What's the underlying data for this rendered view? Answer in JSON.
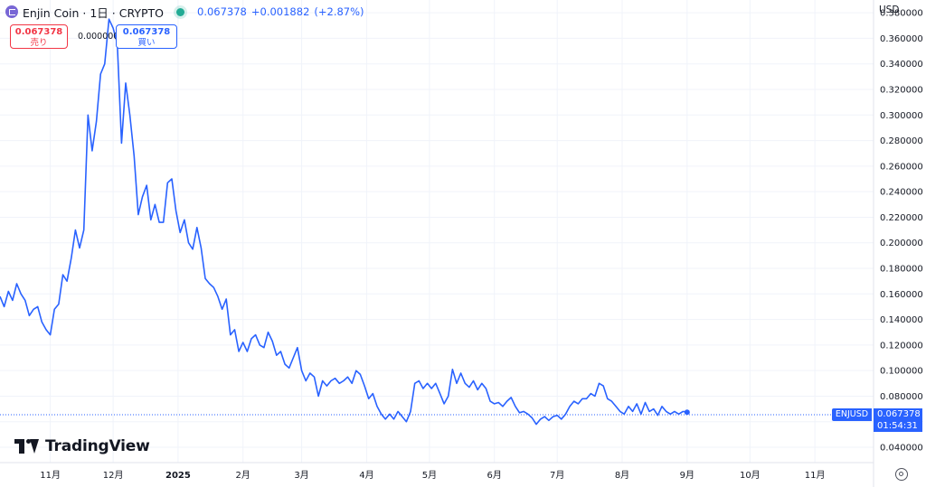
{
  "header": {
    "title": "Enjin Coin · 1日 · CRYPTO",
    "last_price": "0.067378",
    "change": "+0.001882",
    "change_pct": "(+2.87%)"
  },
  "trade_boxes": {
    "sell_price": "0.067378",
    "sell_label": "売り",
    "spread": "0.000000",
    "buy_price": "0.067378",
    "buy_label": "買い"
  },
  "currency": "USD",
  "price_tag": {
    "symbol": "ENJUSD",
    "price": "0.067378",
    "countdown": "01:54:31"
  },
  "brand": "TradingView",
  "colors": {
    "line": "#2962ff",
    "sell": "#f23645",
    "buy": "#2962ff",
    "live": "#22ab94",
    "grid": "#f0f3fa"
  },
  "icons": [
    "coin-logo-icon",
    "live-dot-icon",
    "tradingview-logo-icon",
    "settings-icon"
  ],
  "chart_data": {
    "type": "line",
    "title": "",
    "xlabel": "",
    "ylabel": "",
    "ylim": [
      0.028,
      0.39
    ],
    "xlim": [
      "2024-10-08",
      "2025-11-29"
    ],
    "y_ticks": [
      0.04,
      0.06,
      0.08,
      0.1,
      0.12,
      0.14,
      0.16,
      0.18,
      0.2,
      0.22,
      0.24,
      0.26,
      0.28,
      0.3,
      0.32,
      0.34,
      0.36,
      0.38
    ],
    "x_ticks": [
      {
        "label": "11月",
        "date": "2024-11-01"
      },
      {
        "label": "12月",
        "date": "2024-12-01"
      },
      {
        "label": "2025",
        "date": "2025-01-01"
      },
      {
        "label": "2月",
        "date": "2025-02-01"
      },
      {
        "label": "3月",
        "date": "2025-03-01"
      },
      {
        "label": "4月",
        "date": "2025-04-01"
      },
      {
        "label": "5月",
        "date": "2025-05-01"
      },
      {
        "label": "6月",
        "date": "2025-06-01"
      },
      {
        "label": "7月",
        "date": "2025-07-01"
      },
      {
        "label": "8月",
        "date": "2025-08-01"
      },
      {
        "label": "9月",
        "date": "2025-09-01"
      },
      {
        "label": "10月",
        "date": "2025-10-01"
      },
      {
        "label": "11月",
        "date": "2025-11-01"
      }
    ],
    "grid": true,
    "current_price": 0.067378,
    "series": [
      {
        "points": [
          [
            "2024-10-08",
            0.158
          ],
          [
            "2024-10-10",
            0.15
          ],
          [
            "2024-10-12",
            0.162
          ],
          [
            "2024-10-14",
            0.155
          ],
          [
            "2024-10-16",
            0.168
          ],
          [
            "2024-10-18",
            0.16
          ],
          [
            "2024-10-20",
            0.155
          ],
          [
            "2024-10-22",
            0.143
          ],
          [
            "2024-10-24",
            0.148
          ],
          [
            "2024-10-26",
            0.15
          ],
          [
            "2024-10-28",
            0.138
          ],
          [
            "2024-10-30",
            0.132
          ],
          [
            "2024-11-01",
            0.128
          ],
          [
            "2024-11-03",
            0.148
          ],
          [
            "2024-11-05",
            0.152
          ],
          [
            "2024-11-07",
            0.175
          ],
          [
            "2024-11-09",
            0.17
          ],
          [
            "2024-11-11",
            0.188
          ],
          [
            "2024-11-13",
            0.21
          ],
          [
            "2024-11-15",
            0.196
          ],
          [
            "2024-11-17",
            0.21
          ],
          [
            "2024-11-19",
            0.3
          ],
          [
            "2024-11-21",
            0.272
          ],
          [
            "2024-11-23",
            0.295
          ],
          [
            "2024-11-25",
            0.332
          ],
          [
            "2024-11-27",
            0.34
          ],
          [
            "2024-11-29",
            0.375
          ],
          [
            "2024-12-01",
            0.368
          ],
          [
            "2024-12-03",
            0.356
          ],
          [
            "2024-12-05",
            0.278
          ],
          [
            "2024-12-07",
            0.325
          ],
          [
            "2024-12-09",
            0.3
          ],
          [
            "2024-12-11",
            0.268
          ],
          [
            "2024-12-13",
            0.222
          ],
          [
            "2024-12-15",
            0.236
          ],
          [
            "2024-12-17",
            0.245
          ],
          [
            "2024-12-19",
            0.218
          ],
          [
            "2024-12-21",
            0.23
          ],
          [
            "2024-12-23",
            0.216
          ],
          [
            "2024-12-25",
            0.216
          ],
          [
            "2024-12-27",
            0.247
          ],
          [
            "2024-12-29",
            0.25
          ],
          [
            "2024-12-31",
            0.225
          ],
          [
            "2025-01-02",
            0.208
          ],
          [
            "2025-01-04",
            0.218
          ],
          [
            "2025-01-06",
            0.2
          ],
          [
            "2025-01-08",
            0.195
          ],
          [
            "2025-01-10",
            0.212
          ],
          [
            "2025-01-12",
            0.196
          ],
          [
            "2025-01-14",
            0.172
          ],
          [
            "2025-01-16",
            0.168
          ],
          [
            "2025-01-18",
            0.165
          ],
          [
            "2025-01-20",
            0.158
          ],
          [
            "2025-01-22",
            0.148
          ],
          [
            "2025-01-24",
            0.156
          ],
          [
            "2025-01-26",
            0.128
          ],
          [
            "2025-01-28",
            0.132
          ],
          [
            "2025-01-30",
            0.115
          ],
          [
            "2025-02-01",
            0.122
          ],
          [
            "2025-02-03",
            0.115
          ],
          [
            "2025-02-05",
            0.125
          ],
          [
            "2025-02-07",
            0.128
          ],
          [
            "2025-02-09",
            0.12
          ],
          [
            "2025-02-11",
            0.118
          ],
          [
            "2025-02-13",
            0.13
          ],
          [
            "2025-02-15",
            0.123
          ],
          [
            "2025-02-17",
            0.112
          ],
          [
            "2025-02-19",
            0.115
          ],
          [
            "2025-02-21",
            0.105
          ],
          [
            "2025-02-23",
            0.102
          ],
          [
            "2025-02-25",
            0.11
          ],
          [
            "2025-02-27",
            0.118
          ],
          [
            "2025-03-01",
            0.1
          ],
          [
            "2025-03-03",
            0.092
          ],
          [
            "2025-03-05",
            0.098
          ],
          [
            "2025-03-07",
            0.095
          ],
          [
            "2025-03-09",
            0.08
          ],
          [
            "2025-03-11",
            0.092
          ],
          [
            "2025-03-13",
            0.088
          ],
          [
            "2025-03-15",
            0.092
          ],
          [
            "2025-03-17",
            0.094
          ],
          [
            "2025-03-19",
            0.09
          ],
          [
            "2025-03-21",
            0.092
          ],
          [
            "2025-03-23",
            0.095
          ],
          [
            "2025-03-25",
            0.09
          ],
          [
            "2025-03-27",
            0.1
          ],
          [
            "2025-03-29",
            0.097
          ],
          [
            "2025-03-31",
            0.088
          ],
          [
            "2025-04-02",
            0.078
          ],
          [
            "2025-04-04",
            0.082
          ],
          [
            "2025-04-06",
            0.072
          ],
          [
            "2025-04-08",
            0.066
          ],
          [
            "2025-04-10",
            0.062
          ],
          [
            "2025-04-12",
            0.066
          ],
          [
            "2025-04-14",
            0.062
          ],
          [
            "2025-04-16",
            0.068
          ],
          [
            "2025-04-18",
            0.064
          ],
          [
            "2025-04-20",
            0.06
          ],
          [
            "2025-04-22",
            0.068
          ],
          [
            "2025-04-24",
            0.09
          ],
          [
            "2025-04-26",
            0.092
          ],
          [
            "2025-04-28",
            0.086
          ],
          [
            "2025-04-30",
            0.09
          ],
          [
            "2025-05-02",
            0.086
          ],
          [
            "2025-05-04",
            0.09
          ],
          [
            "2025-05-06",
            0.082
          ],
          [
            "2025-05-08",
            0.074
          ],
          [
            "2025-05-10",
            0.08
          ],
          [
            "2025-05-12",
            0.101
          ],
          [
            "2025-05-14",
            0.09
          ],
          [
            "2025-05-16",
            0.098
          ],
          [
            "2025-05-18",
            0.09
          ],
          [
            "2025-05-20",
            0.087
          ],
          [
            "2025-05-22",
            0.092
          ],
          [
            "2025-05-24",
            0.085
          ],
          [
            "2025-05-26",
            0.09
          ],
          [
            "2025-05-28",
            0.086
          ],
          [
            "2025-05-30",
            0.076
          ],
          [
            "2025-06-01",
            0.074
          ],
          [
            "2025-06-03",
            0.075
          ],
          [
            "2025-06-05",
            0.072
          ],
          [
            "2025-06-07",
            0.076
          ],
          [
            "2025-06-09",
            0.079
          ],
          [
            "2025-06-11",
            0.072
          ],
          [
            "2025-06-13",
            0.067
          ],
          [
            "2025-06-15",
            0.068
          ],
          [
            "2025-06-17",
            0.066
          ],
          [
            "2025-06-19",
            0.063
          ],
          [
            "2025-06-21",
            0.058
          ],
          [
            "2025-06-23",
            0.062
          ],
          [
            "2025-06-25",
            0.064
          ],
          [
            "2025-06-27",
            0.061
          ],
          [
            "2025-06-29",
            0.064
          ],
          [
            "2025-07-01",
            0.065
          ],
          [
            "2025-07-03",
            0.062
          ],
          [
            "2025-07-05",
            0.066
          ],
          [
            "2025-07-07",
            0.072
          ],
          [
            "2025-07-09",
            0.076
          ],
          [
            "2025-07-11",
            0.074
          ],
          [
            "2025-07-13",
            0.078
          ],
          [
            "2025-07-15",
            0.078
          ],
          [
            "2025-07-17",
            0.082
          ],
          [
            "2025-07-19",
            0.08
          ],
          [
            "2025-07-21",
            0.09
          ],
          [
            "2025-07-23",
            0.088
          ],
          [
            "2025-07-25",
            0.078
          ],
          [
            "2025-07-27",
            0.076
          ],
          [
            "2025-07-29",
            0.072
          ],
          [
            "2025-07-31",
            0.068
          ],
          [
            "2025-08-02",
            0.066
          ],
          [
            "2025-08-04",
            0.072
          ],
          [
            "2025-08-06",
            0.068
          ],
          [
            "2025-08-08",
            0.074
          ],
          [
            "2025-08-10",
            0.066
          ],
          [
            "2025-08-12",
            0.075
          ],
          [
            "2025-08-14",
            0.068
          ],
          [
            "2025-08-16",
            0.07
          ],
          [
            "2025-08-18",
            0.065
          ],
          [
            "2025-08-20",
            0.072
          ],
          [
            "2025-08-22",
            0.068
          ],
          [
            "2025-08-24",
            0.066
          ],
          [
            "2025-08-26",
            0.068
          ],
          [
            "2025-08-28",
            0.066
          ],
          [
            "2025-08-30",
            0.068
          ],
          [
            "2025-09-01",
            0.067378
          ]
        ]
      }
    ]
  }
}
